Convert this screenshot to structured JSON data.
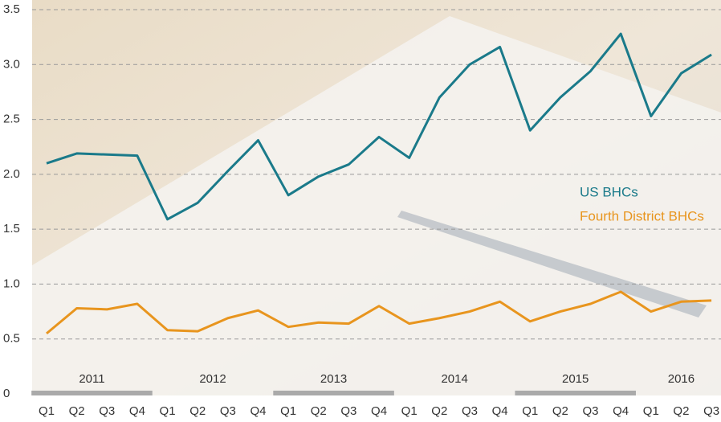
{
  "chart_data": {
    "type": "line",
    "categories": [
      "Q1",
      "Q2",
      "Q3",
      "Q4",
      "Q1",
      "Q2",
      "Q3",
      "Q4",
      "Q1",
      "Q2",
      "Q3",
      "Q4",
      "Q1",
      "Q2",
      "Q3",
      "Q4",
      "Q1",
      "Q2",
      "Q3",
      "Q4",
      "Q1",
      "Q2",
      "Q3"
    ],
    "years": [
      "2011",
      "2012",
      "2013",
      "2014",
      "2015",
      "2016"
    ],
    "series": [
      {
        "name": "US BHCs",
        "color": "#1a7a8a",
        "values": [
          2.1,
          2.19,
          2.18,
          2.17,
          1.59,
          1.74,
          2.03,
          2.31,
          1.81,
          1.98,
          2.09,
          2.34,
          2.15,
          2.7,
          3.0,
          3.16,
          2.4,
          2.7,
          2.94,
          3.28,
          2.53,
          2.92,
          3.09
        ]
      },
      {
        "name": "Fourth District BHCs",
        "color": "#e8951e",
        "values": [
          0.55,
          0.78,
          0.77,
          0.82,
          0.58,
          0.57,
          0.69,
          0.76,
          0.61,
          0.65,
          0.64,
          0.8,
          0.64,
          0.69,
          0.75,
          0.84,
          0.66,
          0.75,
          0.82,
          0.93,
          0.75,
          0.84,
          0.85
        ]
      }
    ],
    "ylim": [
      0,
      3.5
    ],
    "yticks": [
      0,
      0.5,
      {
        "value": 1,
        "label": "1.0"
      },
      1.5,
      {
        "value": 2,
        "label": "2.0"
      },
      2.5,
      {
        "value": 3,
        "label": "3.0"
      },
      3.5
    ],
    "grid": true
  }
}
